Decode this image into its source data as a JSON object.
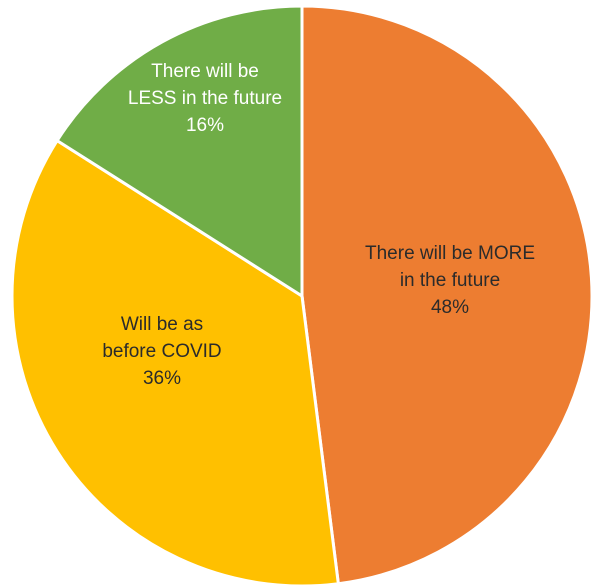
{
  "chart_data": {
    "type": "pie",
    "start_angle_deg": 0,
    "direction": "clockwise",
    "slices": [
      {
        "lines": [
          "There will be MORE",
          "in the future"
        ],
        "value": 48,
        "value_label": "48%",
        "color": "#ED7D31",
        "text_color": "#2b2b2b"
      },
      {
        "lines": [
          "Will be as",
          "before COVID"
        ],
        "value": 36,
        "value_label": "36%",
        "color": "#FFC000",
        "text_color": "#2b2b2b"
      },
      {
        "lines": [
          "There will be",
          "LESS in the future"
        ],
        "value": 16,
        "value_label": "16%",
        "color": "#70AD47",
        "text_color": "#ffffff"
      }
    ],
    "title": "",
    "legend": "none",
    "border_color": "#ffffff"
  }
}
